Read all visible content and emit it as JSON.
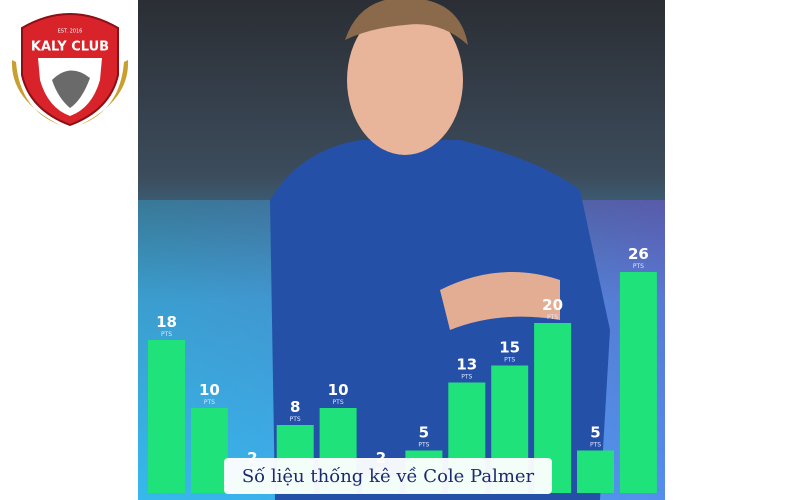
{
  "logo": {
    "name": "KALY CLUB",
    "est": "EST. 2016"
  },
  "caption": "Số liệu thống kê về Cole Palmer",
  "chart_data": {
    "type": "bar",
    "values": [
      18,
      10,
      2,
      8,
      10,
      2,
      5,
      13,
      15,
      20,
      5,
      26
    ],
    "unit_label": "PTS",
    "color": "#1fe27a"
  }
}
